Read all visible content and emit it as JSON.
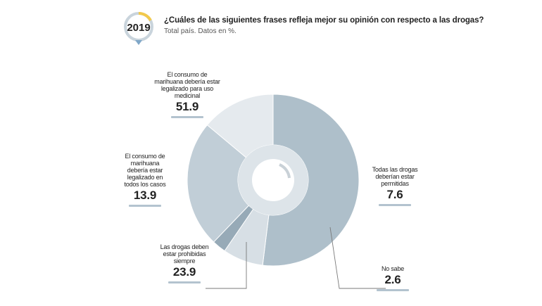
{
  "header": {
    "year": "2019",
    "title": "¿Cuáles de las siguientes frases refleja mejor su opinión con respecto a las drogas?",
    "subtitle": "Total país. Datos en %."
  },
  "colors": {
    "badge_ring": "#c9d4dc",
    "badge_accent": "#f2c94c",
    "badge_pin": "#7fa7c8",
    "leader": "#7a7a7a"
  },
  "chart_data": {
    "type": "pie",
    "variant": "donut",
    "start_angle_deg": -90,
    "slices": [
      {
        "label": "El consumo de marihuana debería estar legalizado para uso medicinal",
        "display": "51.9",
        "value": 51.9,
        "color": "#aebfca"
      },
      {
        "label": "Todas las drogas deberían estar permitidas",
        "display": "7.6",
        "value": 7.6,
        "color": "#d7dfe5"
      },
      {
        "label": "No sabe",
        "display": "2.6",
        "value": 2.6,
        "color": "#97aab7"
      },
      {
        "label": "Las drogas deben estar prohibidas siempre",
        "display": "23.9",
        "value": 23.9,
        "color": "#c1ced7"
      },
      {
        "label": "El consumo de marihuana debería estar legalizado en todos los casos",
        "display": "13.9",
        "value": 13.9,
        "color": "#e5eaee"
      }
    ]
  }
}
